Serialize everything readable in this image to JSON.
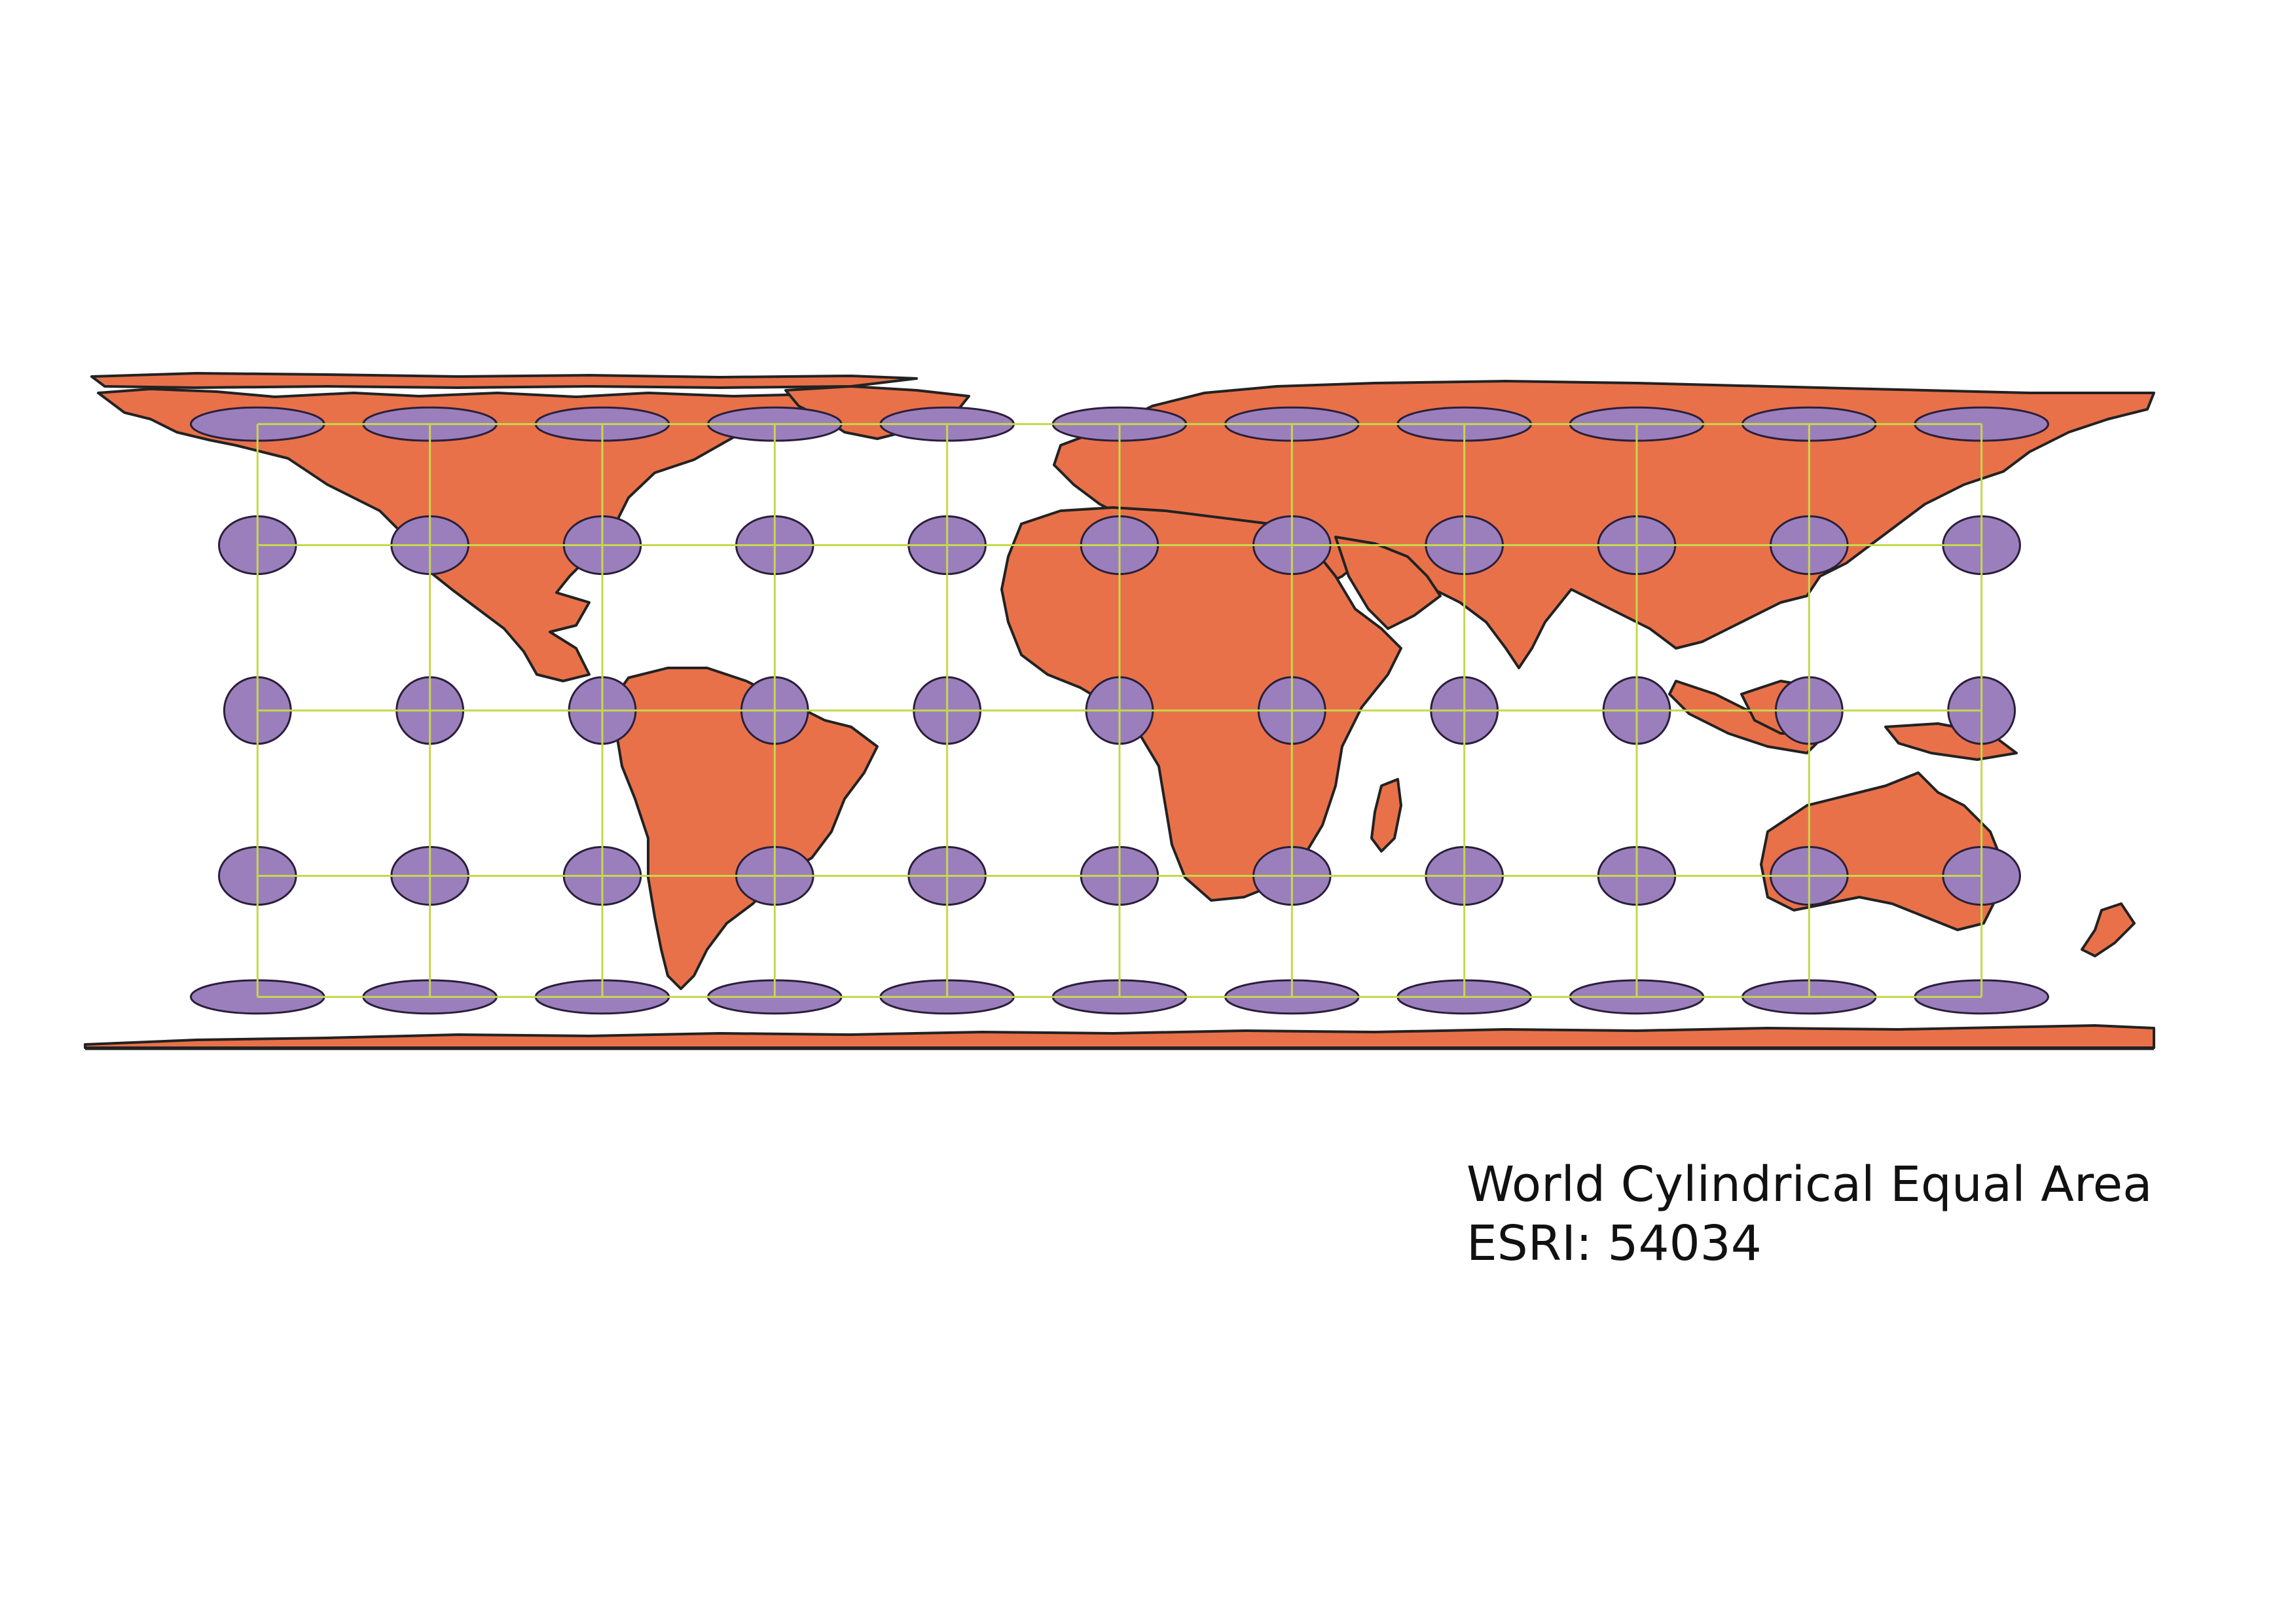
{
  "map": {
    "projection_name": "World Cylindrical Equal Area",
    "projection_code": "ESRI: 54034",
    "colors": {
      "land": "#e8714a",
      "coastline": "#222222",
      "graticule": "#c5d84c",
      "indicatrix": "#9b7fbd",
      "indicatrix_outline": "#2a1f3a",
      "background": "#ffffff"
    },
    "graticule": {
      "meridians_deg": [
        -150,
        -120,
        -90,
        -60,
        -30,
        0,
        30,
        60,
        90,
        120,
        150
      ],
      "parallels_deg": [
        60,
        30,
        0,
        -30,
        -60
      ]
    },
    "tissot_indicatrices": {
      "longitudes_deg": [
        -150,
        -120,
        -90,
        -60,
        -30,
        0,
        30,
        60,
        90,
        120,
        150
      ],
      "latitudes_deg": [
        60,
        30,
        0,
        -30,
        -60
      ]
    },
    "icons": [
      "tissot-ellipse",
      "graticule-line",
      "land-polygon"
    ]
  }
}
